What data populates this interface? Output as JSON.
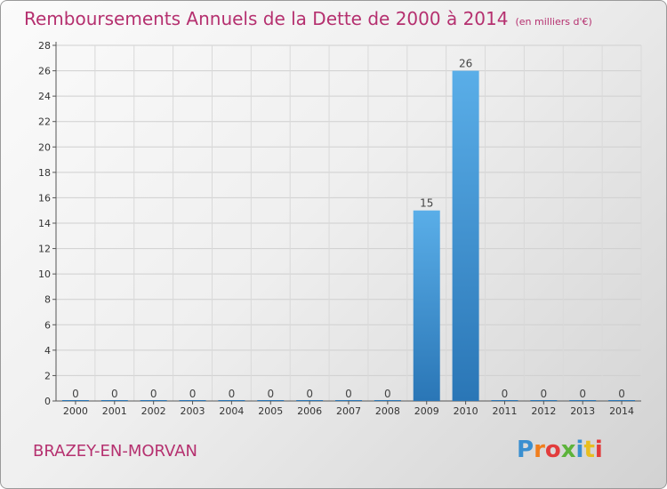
{
  "header": {
    "title": "Remboursements Annuels de la Dette de 2000 à 2014",
    "subtitle": "(en milliers d'€)"
  },
  "footer": {
    "commune": "BRAZEY-EN-MORVAN",
    "logo_text": "Proxiti",
    "logo_colors": [
      "#3a8fd0",
      "#f07e1d",
      "#e23c3c",
      "#5db33b",
      "#3a8fd0",
      "#e8be1f",
      "#e23c3c"
    ]
  },
  "chart_data": {
    "type": "bar",
    "categories": [
      "2000",
      "2001",
      "2002",
      "2003",
      "2004",
      "2005",
      "2006",
      "2007",
      "2008",
      "2009",
      "2010",
      "2011",
      "2012",
      "2013",
      "2014"
    ],
    "values": [
      0,
      0,
      0,
      0,
      0,
      0,
      0,
      0,
      0,
      15,
      26,
      0,
      0,
      0,
      0
    ],
    "data_labels": [
      "0",
      "0",
      "0",
      "0",
      "0",
      "0",
      "0",
      "0",
      "0",
      "15",
      "26",
      "0",
      "0",
      "0",
      "0"
    ],
    "title": "Remboursements Annuels de la Dette de 2000 à 2014",
    "xlabel": "",
    "ylabel": "",
    "ylim": [
      0,
      28
    ],
    "yticks": [
      0,
      2,
      4,
      6,
      8,
      10,
      12,
      14,
      16,
      18,
      20,
      22,
      24,
      26,
      28
    ],
    "grid": true,
    "bar_color_top": "#5aaee8",
    "bar_color_bottom": "#2a76b6"
  }
}
